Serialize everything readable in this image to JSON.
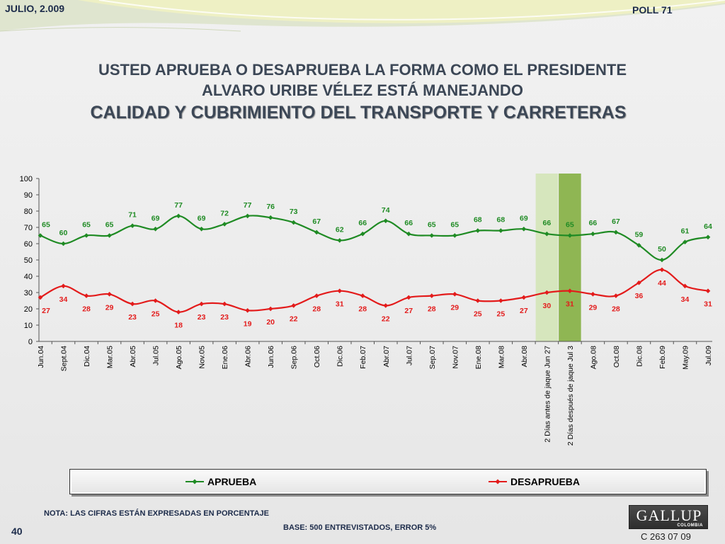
{
  "header": {
    "date": "JULIO, 2.009",
    "poll": "POLL 71"
  },
  "title": {
    "line1": "USTED APRUEBA O DESAPRUEBA LA FORMA COMO EL PRESIDENTE",
    "line2": "ALVARO URIBE VÉLEZ ESTÁ MANEJANDO",
    "line3": "CALIDAD Y CUBRIMIENTO DEL TRANSPORTE Y CARRETERAS"
  },
  "chart_data": {
    "type": "line",
    "categories": [
      "Jun.04",
      "Sept.04",
      "Dic.04",
      "Mar.05",
      "Abr.05",
      "Jul.05",
      "Ago.05",
      "Nov.05",
      "Ene.06",
      "Abr.06",
      "Jun.06",
      "Sep.06",
      "Oct.06",
      "Dic.06",
      "Feb.07",
      "Abr.07",
      "Jul.07",
      "Sep.07",
      "Nov.07",
      "Ene.08",
      "Mar.08",
      "Abr.08",
      "2 Días antes de jaque Jun 27",
      "2 Días después de jaque Jul 3",
      "Ago.08",
      "Oct.08",
      "Dic.08",
      "Feb.09",
      "May.09",
      "Jul.09"
    ],
    "series": [
      {
        "name": "APRUEBA",
        "color": "#1f8b24",
        "label_position": "above",
        "values": [
          65,
          60,
          65,
          65,
          71,
          69,
          77,
          69,
          72,
          77,
          76,
          73,
          67,
          62,
          66,
          74,
          66,
          65,
          65,
          68,
          68,
          69,
          66,
          65,
          66,
          67,
          59,
          50,
          61,
          64
        ]
      },
      {
        "name": "DESAPRUEBA",
        "color": "#e31b1b",
        "label_position": "below",
        "values": [
          27,
          34,
          28,
          29,
          23,
          25,
          18,
          23,
          23,
          19,
          20,
          22,
          28,
          31,
          28,
          22,
          27,
          28,
          29,
          25,
          25,
          27,
          30,
          31,
          29,
          28,
          36,
          44,
          34,
          31
        ]
      }
    ],
    "ylim": [
      0,
      100
    ],
    "yticks": [
      0,
      10,
      20,
      30,
      40,
      50,
      60,
      70,
      80,
      90,
      100
    ],
    "highlighted_categories": [
      {
        "category": "2 Días antes de jaque Jun 27",
        "color": "#d6e6bd"
      },
      {
        "category": "2 Días después de jaque Jul 3",
        "color": "#8fb653"
      }
    ],
    "data_labels": true,
    "grid": false,
    "legend_position": "bottom"
  },
  "footer": {
    "note": "NOTA: LAS CIFRAS ESTÁN EXPRESADAS EN PORCENTAJE",
    "base": "BASE: 500 ENTREVISTADOS, ERROR 5%",
    "page_number": "40",
    "code": "C 263 07 09"
  },
  "logo": {
    "text": "GALLUP",
    "subtext": "COLOMBIA"
  }
}
